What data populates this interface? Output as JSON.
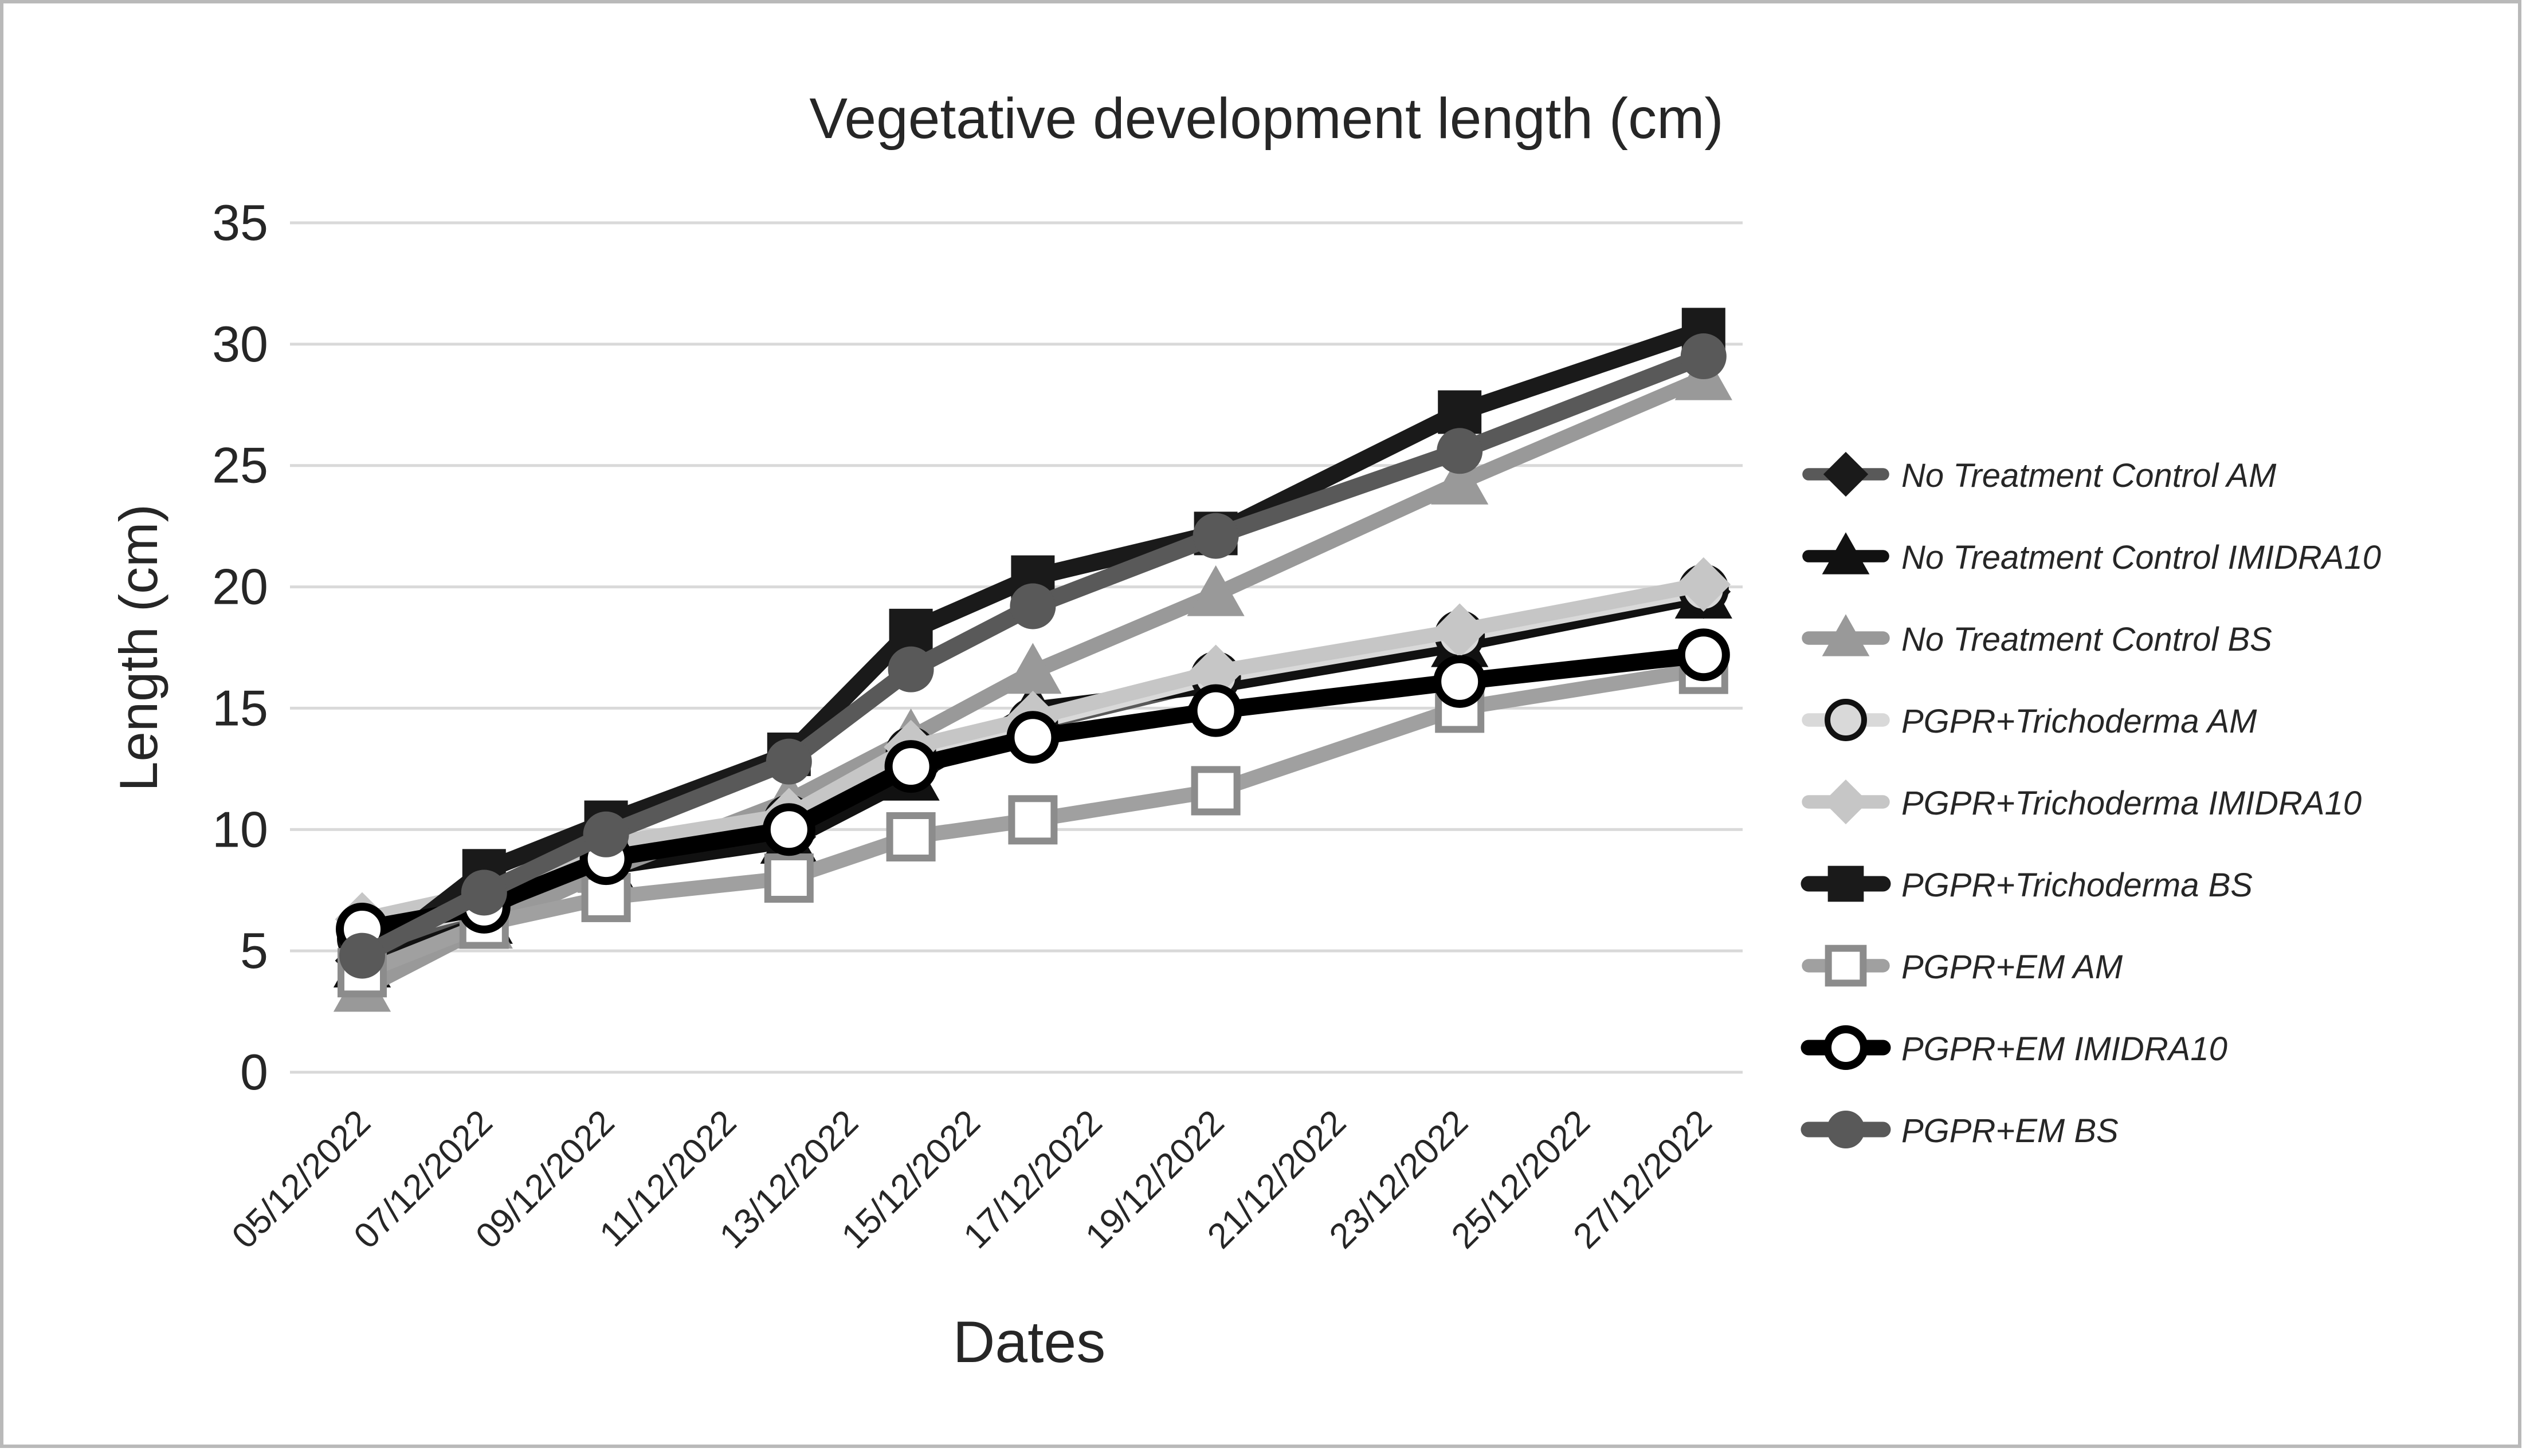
{
  "figure": {
    "background": "#ffffff",
    "border_color": "#b9b9b9"
  },
  "chart_data": {
    "type": "line",
    "title": "Vegetative development length (cm)",
    "xlabel": "Dates",
    "ylabel": "Length (cm)",
    "ylim": [
      0,
      35
    ],
    "ytick_step": 5,
    "y_tick_labels": [
      "0",
      "5",
      "10",
      "15",
      "20",
      "25",
      "30",
      "35"
    ],
    "x_tick_labels": [
      "05/12/2022",
      "07/12/2022",
      "09/12/2022",
      "11/12/2022",
      "13/12/2022",
      "15/12/2022",
      "17/12/2022",
      "19/12/2022",
      "21/12/2022",
      "23/12/2022",
      "25/12/2022",
      "27/12/2022"
    ],
    "x_tick_days": [
      0,
      2,
      4,
      6,
      8,
      10,
      12,
      14,
      16,
      18,
      20,
      22
    ],
    "measurement_dates": [
      "05/12/2022",
      "07/12/2022",
      "09/12/2022",
      "12/12/2022",
      "14/12/2022",
      "16/12/2022",
      "19/12/2022",
      "23/12/2022",
      "27/12/2022"
    ],
    "measurement_days": [
      0,
      2,
      4,
      7,
      9,
      11,
      14,
      18,
      22
    ],
    "grid": true,
    "legend_position": "right",
    "axis_text_color": "#262626",
    "grid_color": "#d9d9d9",
    "series": [
      {
        "name": "No Treatment Control AM",
        "line_color": "#595959",
        "line_width": 24,
        "marker": {
          "shape": "diamond",
          "fill": "#1a1a1a",
          "stroke": "#1a1a1a",
          "stroke_width": 2,
          "icon": "diamond-marker-icon"
        },
        "values": [
          4.6,
          6.4,
          8.6,
          9.7,
          12.4,
          14.3,
          16.1,
          17.9,
          19.8
        ]
      },
      {
        "name": "No Treatment Control IMIDRA10",
        "line_color": "#111111",
        "line_width": 24,
        "marker": {
          "shape": "triangle",
          "fill": "#111111",
          "stroke": "#111111",
          "stroke_width": 2,
          "icon": "triangle-marker-icon"
        },
        "values": [
          4.4,
          6.2,
          8.4,
          9.5,
          12.1,
          15.0,
          15.9,
          17.6,
          19.6
        ]
      },
      {
        "name": "No Treatment Control BS",
        "line_color": "#999999",
        "line_width": 26,
        "marker": {
          "shape": "triangle",
          "fill": "#999999",
          "stroke": "#999999",
          "stroke_width": 2,
          "icon": "triangle-marker-icon"
        },
        "values": [
          3.4,
          6.0,
          8.3,
          11.2,
          13.8,
          16.5,
          19.7,
          24.3,
          28.6
        ]
      },
      {
        "name": "PGPR+Trichoderma AM",
        "line_color": "#d9d9d9",
        "line_width": 26,
        "marker": {
          "shape": "circle",
          "fill": "#d9d9d9",
          "stroke": "#111111",
          "stroke_width": 10,
          "icon": "circle-marker-icon"
        },
        "values": [
          5.5,
          6.8,
          9.2,
          10.4,
          13.2,
          14.4,
          16.3,
          18.0,
          19.9
        ]
      },
      {
        "name": "PGPR+Trichoderma IMIDRA10",
        "line_color": "#c6c6c6",
        "line_width": 26,
        "marker": {
          "shape": "diamond",
          "fill": "#c6c6c6",
          "stroke": "#c6c6c6",
          "stroke_width": 2,
          "icon": "diamond-marker-icon"
        },
        "values": [
          6.3,
          7.4,
          9.4,
          10.6,
          13.4,
          14.6,
          16.5,
          18.2,
          20.1
        ]
      },
      {
        "name": "PGPR+Trichoderma BS",
        "line_color": "#1a1a1a",
        "line_width": 30,
        "marker": {
          "shape": "square",
          "fill": "#1a1a1a",
          "stroke": "#1a1a1a",
          "stroke_width": 2,
          "icon": "square-marker-icon"
        },
        "values": [
          4.4,
          8.3,
          10.3,
          13.1,
          18.2,
          20.4,
          22.2,
          27.2,
          30.6
        ]
      },
      {
        "name": "PGPR+EM AM",
        "line_color": "#a0a0a0",
        "line_width": 26,
        "marker": {
          "shape": "square",
          "fill": "#ffffff",
          "stroke": "#8c8c8c",
          "stroke_width": 12,
          "icon": "open-square-marker-icon"
        },
        "values": [
          4.1,
          6.1,
          7.2,
          8.0,
          9.7,
          10.4,
          11.6,
          15.0,
          16.6
        ]
      },
      {
        "name": "PGPR+EM IMIDRA10",
        "line_color": "#000000",
        "line_width": 30,
        "marker": {
          "shape": "circle",
          "fill": "#ffffff",
          "stroke": "#000000",
          "stroke_width": 14,
          "icon": "open-circle-marker-icon"
        },
        "values": [
          5.9,
          6.8,
          8.8,
          10.0,
          12.6,
          13.8,
          14.9,
          16.1,
          17.2
        ]
      },
      {
        "name": "PGPR+EM BS",
        "line_color": "#595959",
        "line_width": 30,
        "marker": {
          "shape": "circle",
          "fill": "#595959",
          "stroke": "#595959",
          "stroke_width": 2,
          "icon": "circle-marker-icon"
        },
        "values": [
          4.8,
          7.4,
          9.8,
          12.8,
          16.6,
          19.2,
          22.1,
          25.6,
          29.5
        ]
      }
    ]
  }
}
